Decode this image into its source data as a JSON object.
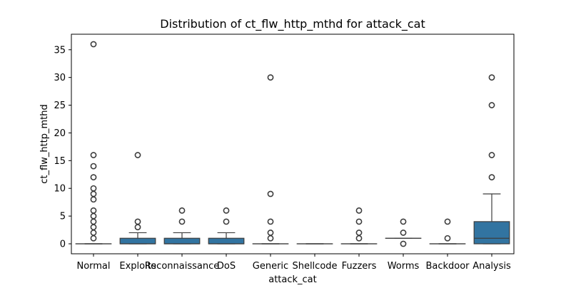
{
  "chart_data": {
    "type": "boxplot",
    "title": "Distribution of ct_flw_http_mthd for attack_cat",
    "xlabel": "attack_cat",
    "ylabel": "ct_flw_http_mthd",
    "ylim": [
      -1.8,
      37.8
    ],
    "yticks": [
      0,
      5,
      10,
      15,
      20,
      25,
      30,
      35
    ],
    "grid": false,
    "box_color": "#3274a1",
    "categories": [
      "Normal",
      "Exploits",
      "Reconnaissance",
      "DoS",
      "Generic",
      "Shellcode",
      "Fuzzers",
      "Worms",
      "Backdoor",
      "Analysis"
    ],
    "boxes": [
      {
        "category": "Normal",
        "whislo": 0,
        "q1": 0,
        "med": 0,
        "q3": 0,
        "whishi": 0,
        "fliers": [
          1,
          2,
          3,
          4,
          5,
          6,
          8,
          9,
          10,
          12,
          14,
          16,
          36
        ]
      },
      {
        "category": "Exploits",
        "whislo": 0,
        "q1": 0,
        "med": 0,
        "q3": 1,
        "whishi": 2,
        "fliers": [
          3,
          4,
          16
        ]
      },
      {
        "category": "Reconnaissance",
        "whislo": 0,
        "q1": 0,
        "med": 0,
        "q3": 1,
        "whishi": 2,
        "fliers": [
          4,
          6
        ]
      },
      {
        "category": "DoS",
        "whislo": 0,
        "q1": 0,
        "med": 0,
        "q3": 1,
        "whishi": 2,
        "fliers": [
          4,
          6
        ]
      },
      {
        "category": "Generic",
        "whislo": 0,
        "q1": 0,
        "med": 0,
        "q3": 0,
        "whishi": 0,
        "fliers": [
          1,
          2,
          4,
          9,
          30
        ]
      },
      {
        "category": "Shellcode",
        "whislo": 0,
        "q1": 0,
        "med": 0,
        "q3": 0,
        "whishi": 0,
        "fliers": []
      },
      {
        "category": "Fuzzers",
        "whislo": 0,
        "q1": 0,
        "med": 0,
        "q3": 0,
        "whishi": 0,
        "fliers": [
          1,
          2,
          4,
          6
        ]
      },
      {
        "category": "Worms",
        "whislo": 1,
        "q1": 1,
        "med": 1,
        "q3": 1,
        "whishi": 1,
        "fliers": [
          0,
          2,
          4
        ]
      },
      {
        "category": "Backdoor",
        "whislo": 0,
        "q1": 0,
        "med": 0,
        "q3": 0,
        "whishi": 0,
        "fliers": [
          1,
          4
        ]
      },
      {
        "category": "Analysis",
        "whislo": 0,
        "q1": 0,
        "med": 1,
        "q3": 4,
        "whishi": 9,
        "fliers": [
          12,
          16,
          25,
          30
        ]
      }
    ]
  }
}
